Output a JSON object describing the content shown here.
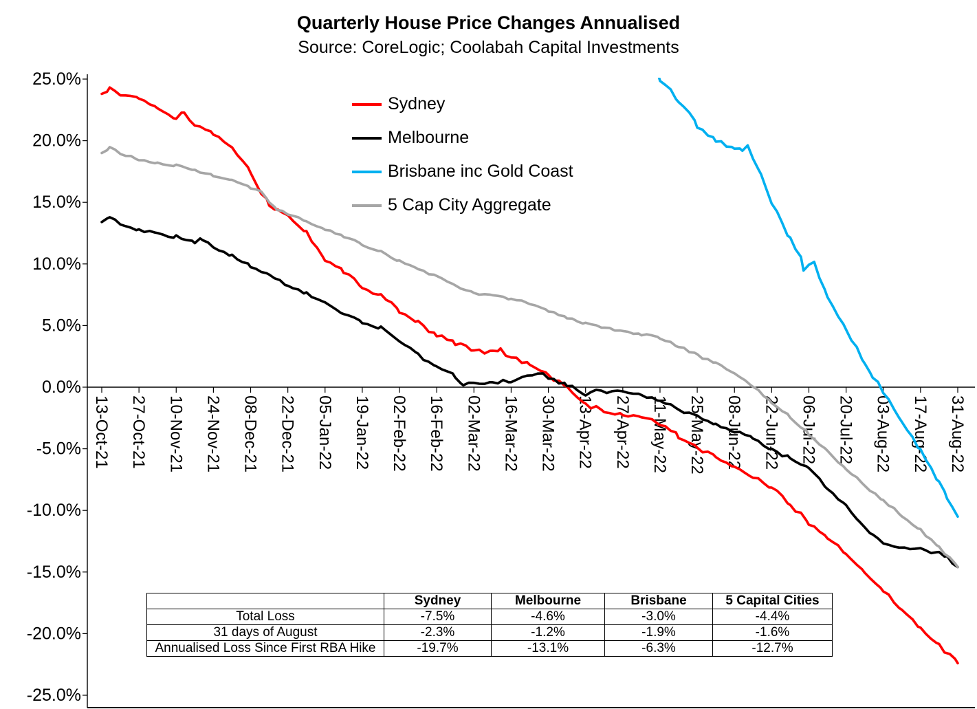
{
  "title": "Quarterly House Price Changes Annualised",
  "subtitle": "Source: CoreLogic; Coolabah Capital Investments",
  "chart_data": {
    "type": "line",
    "title": "Quarterly House Price Changes Annualised",
    "xlabel": "",
    "ylabel": "",
    "ylim": [
      -25,
      25
    ],
    "ytick_step": 5,
    "ytick_labels": [
      "25.0%",
      "20.0%",
      "15.0%",
      "10.0%",
      "5.0%",
      "0.0%",
      "-5.0%",
      "-10.0%",
      "-15.0%",
      "-20.0%",
      "-25.0%"
    ],
    "x_tick_labels": [
      "13-Oct-21",
      "27-Oct-21",
      "10-Nov-21",
      "24-Nov-21",
      "08-Dec-21",
      "22-Dec-21",
      "05-Jan-22",
      "19-Jan-22",
      "02-Feb-22",
      "16-Feb-22",
      "02-Mar-22",
      "16-Mar-22",
      "30-Mar-22",
      "13-Apr-22",
      "27-Apr-22",
      "11-May-22",
      "25-May-22",
      "08-Jun-22",
      "22-Jun-22",
      "06-Jul-22",
      "20-Jul-22",
      "03-Aug-22",
      "17-Aug-22",
      "31-Aug-22"
    ],
    "x_total_days": 322,
    "x_tick_interval_days": 14,
    "grid": false,
    "legend_position": "inside-top-center",
    "axis_color": "#000000",
    "series": [
      {
        "name": "Sydney",
        "color": "#FF0000",
        "points": [
          [
            0,
            23.8
          ],
          [
            3,
            24.3
          ],
          [
            7,
            23.8
          ],
          [
            14,
            23.3
          ],
          [
            21,
            22.6
          ],
          [
            28,
            21.9
          ],
          [
            31,
            22.2
          ],
          [
            35,
            21.2
          ],
          [
            42,
            20.5
          ],
          [
            49,
            19.6
          ],
          [
            56,
            17.4
          ],
          [
            58,
            16.6
          ],
          [
            60,
            15.8
          ],
          [
            63,
            14.9
          ],
          [
            66,
            14.4
          ],
          [
            70,
            14.0
          ],
          [
            77,
            12.6
          ],
          [
            84,
            10.4
          ],
          [
            91,
            9.4
          ],
          [
            98,
            8.2
          ],
          [
            105,
            7.4
          ],
          [
            112,
            6.2
          ],
          [
            119,
            5.2
          ],
          [
            126,
            4.2
          ],
          [
            133,
            3.6
          ],
          [
            140,
            3.0
          ],
          [
            147,
            2.8
          ],
          [
            150,
            3.0
          ],
          [
            154,
            2.4
          ],
          [
            161,
            1.8
          ],
          [
            168,
            1.0
          ],
          [
            172,
            0.4
          ],
          [
            175,
            0.0
          ],
          [
            182,
            -1.4
          ],
          [
            189,
            -1.9
          ],
          [
            196,
            -2.2
          ],
          [
            203,
            -2.4
          ],
          [
            210,
            -3.0
          ],
          [
            217,
            -4.0
          ],
          [
            224,
            -4.9
          ],
          [
            231,
            -5.7
          ],
          [
            238,
            -6.5
          ],
          [
            245,
            -7.3
          ],
          [
            252,
            -8.2
          ],
          [
            259,
            -9.5
          ],
          [
            266,
            -11.0
          ],
          [
            273,
            -12.2
          ],
          [
            280,
            -13.5
          ],
          [
            287,
            -15.0
          ],
          [
            294,
            -16.6
          ],
          [
            301,
            -18.0
          ],
          [
            308,
            -19.6
          ],
          [
            315,
            -21.0
          ],
          [
            322,
            -22.4
          ]
        ]
      },
      {
        "name": "Melbourne",
        "color": "#000000",
        "points": [
          [
            0,
            13.4
          ],
          [
            3,
            13.8
          ],
          [
            7,
            13.2
          ],
          [
            14,
            12.7
          ],
          [
            21,
            12.4
          ],
          [
            28,
            12.2
          ],
          [
            35,
            11.8
          ],
          [
            38,
            12.0
          ],
          [
            42,
            11.3
          ],
          [
            49,
            10.6
          ],
          [
            56,
            9.8
          ],
          [
            63,
            9.0
          ],
          [
            70,
            8.2
          ],
          [
            77,
            7.6
          ],
          [
            84,
            6.8
          ],
          [
            91,
            6.0
          ],
          [
            98,
            5.2
          ],
          [
            105,
            4.8
          ],
          [
            112,
            3.7
          ],
          [
            119,
            2.6
          ],
          [
            126,
            1.6
          ],
          [
            130,
            1.4
          ],
          [
            133,
            0.8
          ],
          [
            136,
            0.3
          ],
          [
            140,
            0.4
          ],
          [
            147,
            0.4
          ],
          [
            154,
            0.5
          ],
          [
            158,
            0.8
          ],
          [
            164,
            1.2
          ],
          [
            168,
            0.8
          ],
          [
            172,
            0.4
          ],
          [
            175,
            0.2
          ],
          [
            182,
            -0.6
          ],
          [
            186,
            -0.3
          ],
          [
            196,
            -0.4
          ],
          [
            203,
            -0.7
          ],
          [
            210,
            -1.0
          ],
          [
            214,
            -1.4
          ],
          [
            217,
            -1.8
          ],
          [
            224,
            -2.4
          ],
          [
            231,
            -3.0
          ],
          [
            238,
            -3.6
          ],
          [
            245,
            -4.2
          ],
          [
            252,
            -5.0
          ],
          [
            259,
            -5.8
          ],
          [
            266,
            -6.6
          ],
          [
            270,
            -7.4
          ],
          [
            273,
            -8.2
          ],
          [
            280,
            -9.6
          ],
          [
            285,
            -11.0
          ],
          [
            290,
            -12.0
          ],
          [
            294,
            -12.6
          ],
          [
            298,
            -13.0
          ],
          [
            308,
            -13.2
          ],
          [
            315,
            -13.5
          ],
          [
            318,
            -13.8
          ],
          [
            322,
            -14.6
          ]
        ]
      },
      {
        "name": "Brisbane inc Gold Coast",
        "color": "#00B0F0",
        "points": [
          [
            207,
            27.0
          ],
          [
            210,
            25.0
          ],
          [
            214,
            24.0
          ],
          [
            217,
            23.2
          ],
          [
            221,
            22.2
          ],
          [
            224,
            21.2
          ],
          [
            228,
            20.4
          ],
          [
            231,
            20.0
          ],
          [
            235,
            19.6
          ],
          [
            238,
            19.4
          ],
          [
            241,
            19.2
          ],
          [
            243,
            19.6
          ],
          [
            245,
            18.6
          ],
          [
            248,
            17.4
          ],
          [
            252,
            14.8
          ],
          [
            256,
            13.4
          ],
          [
            259,
            12.0
          ],
          [
            263,
            10.6
          ],
          [
            264,
            9.6
          ],
          [
            266,
            9.9
          ],
          [
            268,
            10.2
          ],
          [
            270,
            8.8
          ],
          [
            273,
            7.2
          ],
          [
            277,
            5.8
          ],
          [
            280,
            4.6
          ],
          [
            284,
            3.2
          ],
          [
            287,
            2.0
          ],
          [
            290,
            0.8
          ],
          [
            294,
            -0.3
          ],
          [
            298,
            -1.8
          ],
          [
            301,
            -3.0
          ],
          [
            305,
            -4.2
          ],
          [
            308,
            -5.2
          ],
          [
            312,
            -6.6
          ],
          [
            315,
            -7.8
          ],
          [
            318,
            -9.0
          ],
          [
            322,
            -10.5
          ]
        ]
      },
      {
        "name": "5 Cap City Aggregate",
        "color": "#A6A6A6",
        "points": [
          [
            0,
            19.0
          ],
          [
            3,
            19.4
          ],
          [
            7,
            19.0
          ],
          [
            14,
            18.5
          ],
          [
            21,
            18.2
          ],
          [
            28,
            18.0
          ],
          [
            35,
            17.6
          ],
          [
            42,
            17.2
          ],
          [
            49,
            16.8
          ],
          [
            56,
            16.2
          ],
          [
            60,
            15.9
          ],
          [
            63,
            14.9
          ],
          [
            66,
            14.4
          ],
          [
            70,
            14.1
          ],
          [
            77,
            13.4
          ],
          [
            84,
            12.8
          ],
          [
            91,
            12.2
          ],
          [
            98,
            11.6
          ],
          [
            105,
            11.0
          ],
          [
            112,
            10.2
          ],
          [
            119,
            9.6
          ],
          [
            126,
            9.0
          ],
          [
            133,
            8.2
          ],
          [
            140,
            7.6
          ],
          [
            147,
            7.4
          ],
          [
            154,
            7.2
          ],
          [
            161,
            6.8
          ],
          [
            168,
            6.2
          ],
          [
            175,
            5.6
          ],
          [
            182,
            5.2
          ],
          [
            189,
            4.8
          ],
          [
            196,
            4.6
          ],
          [
            203,
            4.3
          ],
          [
            210,
            4.0
          ],
          [
            217,
            3.3
          ],
          [
            224,
            2.6
          ],
          [
            231,
            1.9
          ],
          [
            238,
            1.2
          ],
          [
            245,
            0.1
          ],
          [
            252,
            -1.2
          ],
          [
            259,
            -2.4
          ],
          [
            266,
            -3.8
          ],
          [
            273,
            -5.2
          ],
          [
            280,
            -6.6
          ],
          [
            287,
            -8.0
          ],
          [
            294,
            -9.2
          ],
          [
            301,
            -10.4
          ],
          [
            308,
            -11.6
          ],
          [
            315,
            -13.0
          ],
          [
            322,
            -14.6
          ]
        ]
      }
    ]
  },
  "table": {
    "headers": [
      "",
      "Sydney",
      "Melbourne",
      "Brisbane",
      "5 Capital Cities"
    ],
    "rows": [
      {
        "label": "Total Loss",
        "values": [
          "-7.5%",
          "-4.6%",
          "-3.0%",
          "-4.4%"
        ]
      },
      {
        "label": "31 days of August",
        "values": [
          "-2.3%",
          "-1.2%",
          "-1.9%",
          "-1.6%"
        ]
      },
      {
        "label": "Annualised Loss Since First RBA Hike",
        "values": [
          "-19.7%",
          "-13.1%",
          "-6.3%",
          "-12.7%"
        ]
      }
    ]
  }
}
